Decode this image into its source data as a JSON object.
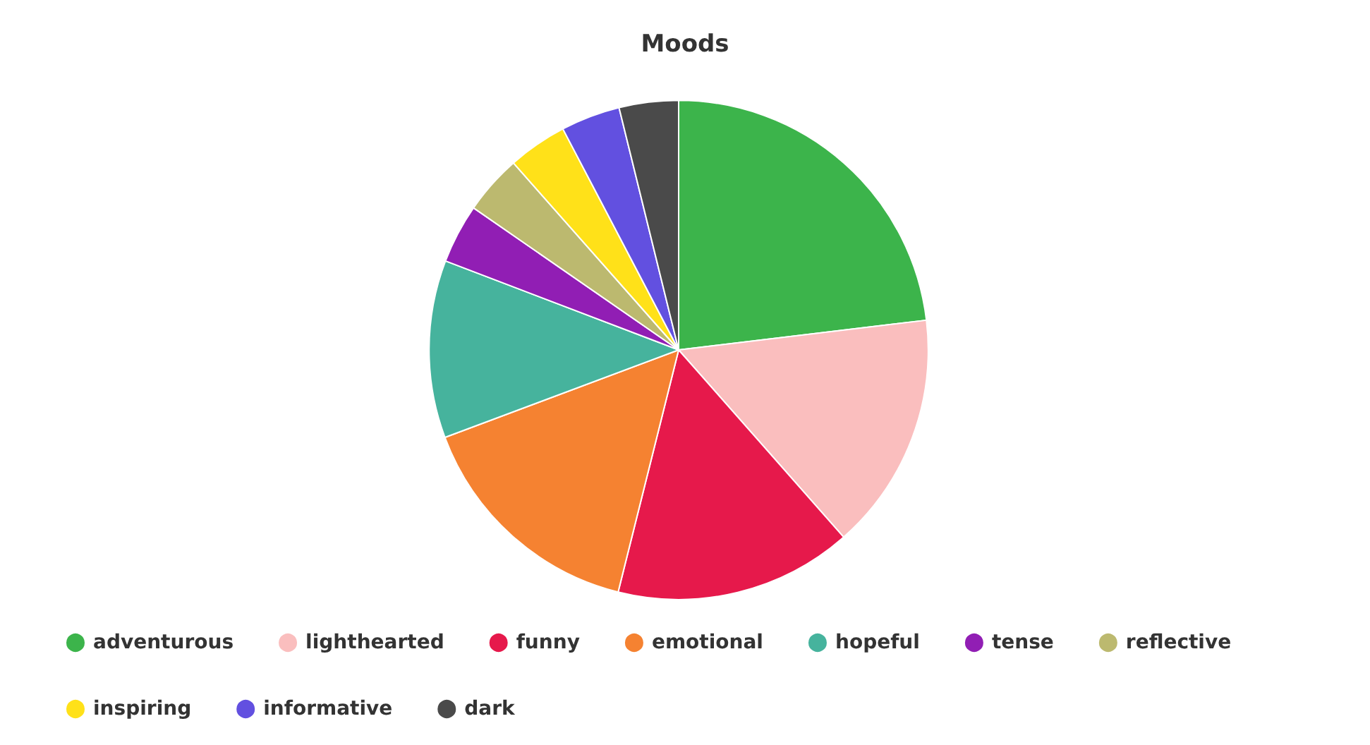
{
  "chart_data": {
    "type": "pie",
    "title": "Moods",
    "categories": [
      "adventurous",
      "lighthearted",
      "funny",
      "emotional",
      "hopeful",
      "tense",
      "reflective",
      "inspiring",
      "informative",
      "dark"
    ],
    "values": [
      23.1,
      15.4,
      15.4,
      15.4,
      11.5,
      3.84,
      3.84,
      3.84,
      3.84,
      3.84
    ],
    "colors": [
      "#3cb44b",
      "#fabebe",
      "#e6194b",
      "#f58231",
      "#46b39d",
      "#911eb4",
      "#bcb96f",
      "#ffe119",
      "#6250e0",
      "#4a4a4a"
    ],
    "legend": "bottom"
  }
}
